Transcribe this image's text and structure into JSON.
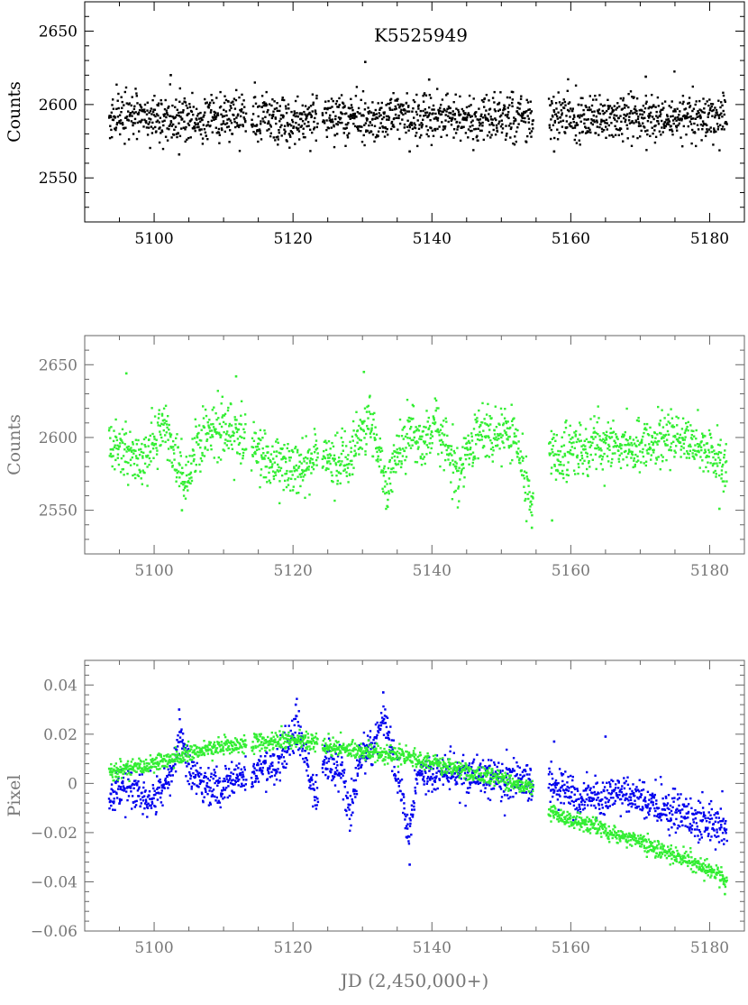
{
  "chart_data": [
    {
      "type": "scatter",
      "title": "K5525949",
      "ylabel": "Counts",
      "xlabel": "",
      "xlim": [
        5090,
        5185
      ],
      "ylim": [
        2520,
        2670
      ],
      "xticks": [
        5100,
        5120,
        5140,
        5160,
        5180
      ],
      "xtick_labels": [
        "5100",
        "5120",
        "5140",
        "5160",
        "5180"
      ],
      "yticks": [
        2550,
        2600,
        2650
      ],
      "ytick_labels": [
        "2550",
        "2600",
        "2650"
      ],
      "grid": false,
      "legend": "none",
      "series": [
        {
          "color": "#000000",
          "time_range": [
            5093.5,
            5182.5
          ],
          "gaps": [
            [
              5113.3,
              5114.0
            ],
            [
              5123.6,
              5124.2
            ],
            [
              5154.6,
              5156.8
            ]
          ],
          "level": 2591,
          "scatter_1sigma": 8,
          "points": [
            [
              5102.4,
              2620
            ],
            [
              5130.4,
              2629
            ],
            [
              5139.6,
              2617
            ],
            [
              5170.8,
              2619
            ],
            [
              5103.6,
              2566
            ],
            [
              5136.8,
              2568
            ],
            [
              5157.6,
              2568
            ]
          ]
        }
      ]
    },
    {
      "type": "scatter",
      "title": "",
      "ylabel": "Counts",
      "xlabel": "",
      "xlim": [
        5090,
        5185
      ],
      "ylim": [
        2520,
        2670
      ],
      "xticks": [
        5100,
        5120,
        5140,
        5160,
        5180
      ],
      "xtick_labels": [
        "5100",
        "5120",
        "5140",
        "5160",
        "5180"
      ],
      "yticks": [
        2550,
        2600,
        2650
      ],
      "ytick_labels": [
        "2550",
        "2600",
        "2650"
      ],
      "grid": false,
      "legend": "none",
      "series": [
        {
          "color": "#33ee33",
          "time_range": [
            5093.5,
            5182.5
          ],
          "gaps": [
            [
              5113.3,
              5114.0
            ],
            [
              5123.6,
              5124.2
            ],
            [
              5154.6,
              5156.8
            ]
          ],
          "scatter_1sigma": 9,
          "trend": [
            [
              5093.5,
              2598
            ],
            [
              5096,
              2590
            ],
            [
              5098,
              2582
            ],
            [
              5100,
              2598
            ],
            [
              5101.5,
              2608
            ],
            [
              5103,
              2590
            ],
            [
              5104.2,
              2570
            ],
            [
              5106,
              2590
            ],
            [
              5108,
              2606
            ],
            [
              5110,
              2608
            ],
            [
              5113,
              2601
            ],
            [
              5114,
              2592
            ],
            [
              5117,
              2586
            ],
            [
              5120,
              2576
            ],
            [
              5122,
              2582
            ],
            [
              5124,
              2592
            ],
            [
              5126,
              2580
            ],
            [
              5128,
              2584
            ],
            [
              5130,
              2604
            ],
            [
              5131,
              2614
            ],
            [
              5132.5,
              2583
            ],
            [
              5133.5,
              2564
            ],
            [
              5135,
              2590
            ],
            [
              5137,
              2606
            ],
            [
              5138.5,
              2594
            ],
            [
              5140.5,
              2612
            ],
            [
              5142,
              2590
            ],
            [
              5144,
              2574
            ],
            [
              5145,
              2590
            ],
            [
              5147,
              2604
            ],
            [
              5149,
              2598
            ],
            [
              5151,
              2606
            ],
            [
              5152.5,
              2592
            ],
            [
              5154.2,
              2552
            ],
            [
              5157,
              2588
            ],
            [
              5160,
              2590
            ],
            [
              5165,
              2596
            ],
            [
              5170,
              2593
            ],
            [
              5175,
              2600
            ],
            [
              5178,
              2595
            ],
            [
              5182.5,
              2580
            ]
          ],
          "points": [
            [
              5096.0,
              2644
            ],
            [
              5111.8,
              2642
            ],
            [
              5130.2,
              2645
            ],
            [
              5154.4,
              2538
            ],
            [
              5157.3,
              2543
            ],
            [
              5181.4,
              2551
            ],
            [
              5104.0,
              2550
            ]
          ]
        }
      ]
    },
    {
      "type": "scatter",
      "title": "",
      "ylabel": "Pixel",
      "xlabel": "JD (2,450,000+)",
      "xlim": [
        5090,
        5185
      ],
      "ylim": [
        -0.06,
        0.05
      ],
      "xticks": [
        5100,
        5120,
        5140,
        5160,
        5180
      ],
      "xtick_labels": [
        "5100",
        "5120",
        "5140",
        "5160",
        "5180"
      ],
      "yticks": [
        -0.06,
        -0.04,
        -0.02,
        0,
        0.02,
        0.04
      ],
      "ytick_labels": [
        "−0.06",
        "−0.04",
        "−0.02",
        "0",
        "0.02",
        "0.04"
      ],
      "grid": false,
      "legend": "none",
      "series": [
        {
          "color": "#0000ee",
          "time_range": [
            5093.5,
            5182.5
          ],
          "gaps": [
            [
              5113.3,
              5114.0
            ],
            [
              5123.6,
              5124.2
            ],
            [
              5154.6,
              5156.8
            ]
          ],
          "scatter_1sigma": 0.004,
          "trend": [
            [
              5093.5,
              -0.006
            ],
            [
              5096,
              0.0
            ],
            [
              5099,
              -0.008
            ],
            [
              5101,
              -0.004
            ],
            [
              5103,
              0.01
            ],
            [
              5104,
              0.02
            ],
            [
              5105,
              0.004
            ],
            [
              5108,
              -0.002
            ],
            [
              5113,
              0.003
            ],
            [
              5114,
              0.004
            ],
            [
              5117,
              0.006
            ],
            [
              5119,
              0.012
            ],
            [
              5120.5,
              0.024
            ],
            [
              5122,
              0.01
            ],
            [
              5123.2,
              -0.006
            ],
            [
              5124.5,
              0.008
            ],
            [
              5127,
              0.005
            ],
            [
              5128.2,
              -0.012
            ],
            [
              5129.5,
              0.008
            ],
            [
              5132,
              0.018
            ],
            [
              5133,
              0.028
            ],
            [
              5134.5,
              0.008
            ],
            [
              5136,
              -0.008
            ],
            [
              5136.7,
              -0.024
            ],
            [
              5138,
              0.004
            ],
            [
              5142,
              0.005
            ],
            [
              5146,
              0.003
            ],
            [
              5150,
              0.002
            ],
            [
              5154.5,
              0.001
            ],
            [
              5157,
              -0.001
            ],
            [
              5162,
              -0.006
            ],
            [
              5167,
              -0.004
            ],
            [
              5172,
              -0.008
            ],
            [
              5177,
              -0.014
            ],
            [
              5182.5,
              -0.018
            ]
          ],
          "points": [
            [
              5103.6,
              0.03
            ],
            [
              5120.4,
              0.032
            ],
            [
              5133.0,
              0.037
            ],
            [
              5136.8,
              -0.033
            ],
            [
              5157.6,
              0.017
            ],
            [
              5165.0,
              0.019
            ]
          ]
        },
        {
          "color": "#33ee33",
          "time_range": [
            5093.5,
            5182.5
          ],
          "gaps": [
            [
              5113.3,
              5114.0
            ],
            [
              5123.6,
              5124.2
            ],
            [
              5154.6,
              5156.8
            ]
          ],
          "scatter_1sigma": 0.0018,
          "trend": [
            [
              5093.5,
              0.004
            ],
            [
              5100,
              0.008
            ],
            [
              5106,
              0.013
            ],
            [
              5113,
              0.016
            ],
            [
              5114,
              0.016
            ],
            [
              5120,
              0.018
            ],
            [
              5123.5,
              0.017
            ],
            [
              5124.5,
              0.015
            ],
            [
              5130,
              0.013
            ],
            [
              5136,
              0.011
            ],
            [
              5142,
              0.007
            ],
            [
              5148,
              0.003
            ],
            [
              5154.5,
              -0.002
            ],
            [
              5157,
              -0.012
            ],
            [
              5163,
              -0.017
            ],
            [
              5170,
              -0.024
            ],
            [
              5176,
              -0.03
            ],
            [
              5182.5,
              -0.039
            ]
          ],
          "points": [
            [
              5182.2,
              -0.045
            ]
          ]
        }
      ]
    }
  ]
}
